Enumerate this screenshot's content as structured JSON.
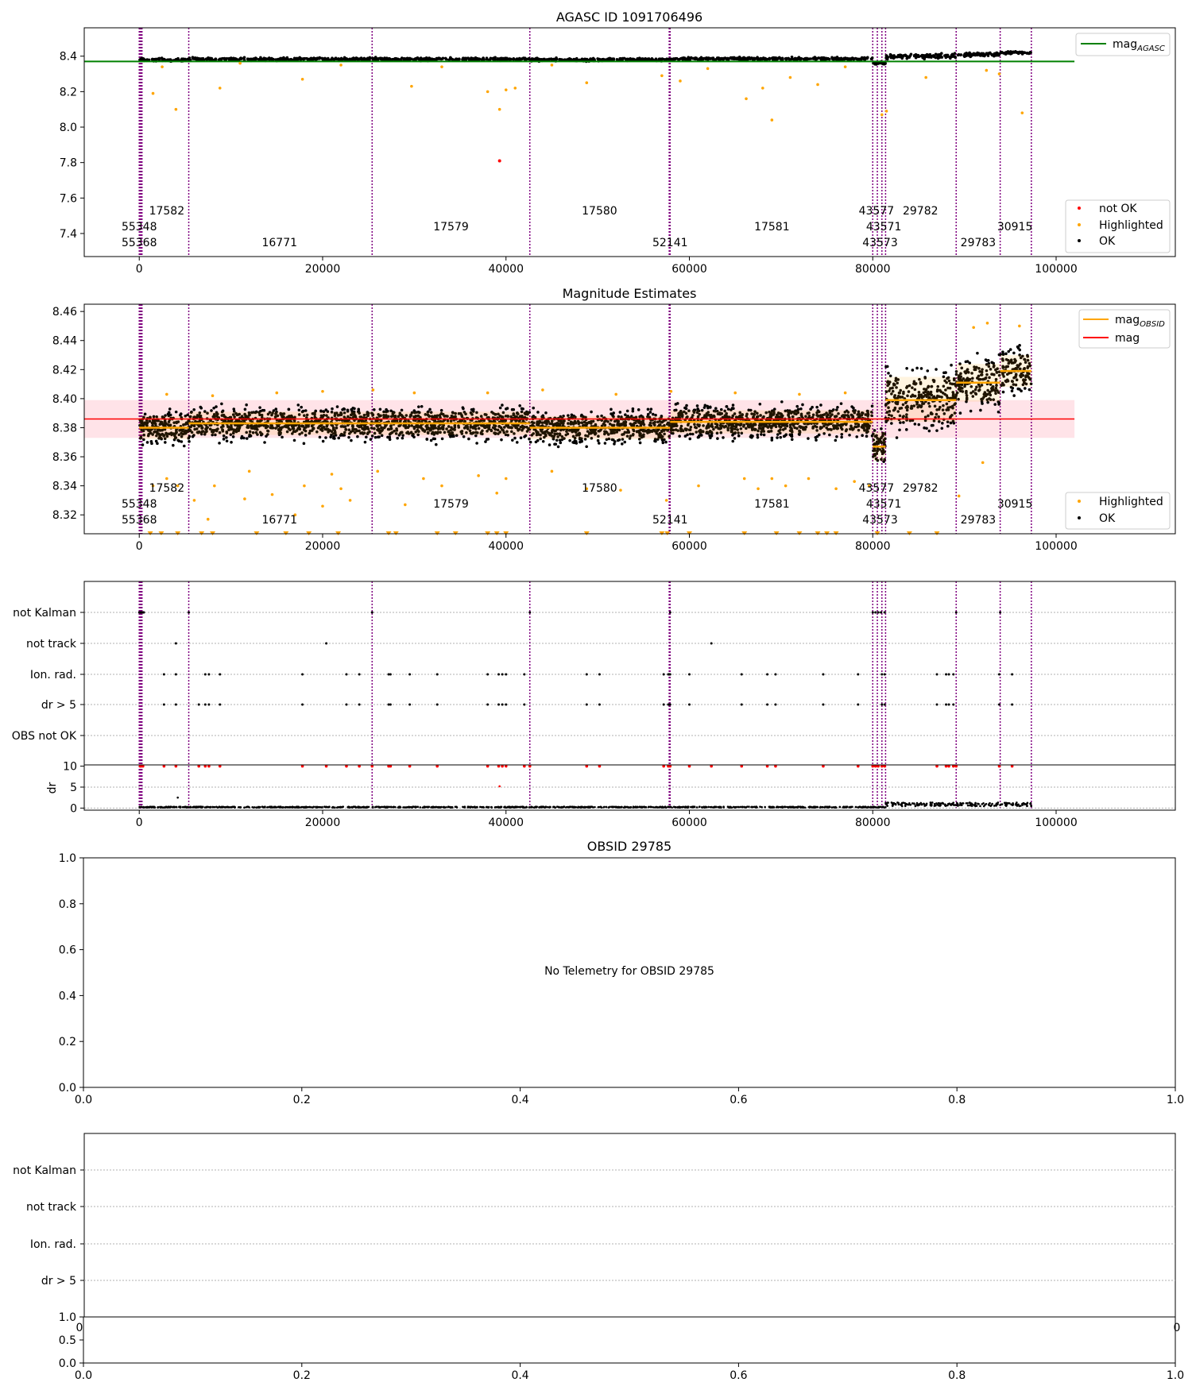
{
  "figure": {
    "title_1": "AGASC ID 1091706496",
    "title_2": "Magnitude Estimates",
    "title_4": "OBSID 29785",
    "no_telemetry_text": "No Telemetry for OBSID 29785"
  },
  "colors": {
    "ok": "#000000",
    "highlighted": "#ffa500",
    "not_ok": "#ff0000",
    "agasc_line": "#008000",
    "mag_line": "#ff0000",
    "mag_band": "#ffc0cb",
    "obsid_line": "#ffa500",
    "boundary": "#800080",
    "grid": "#b0b0b0"
  },
  "chart_data": [
    {
      "type": "scatter",
      "title": "AGASC ID 1091706496",
      "xlim": [
        -6000,
        113000
      ],
      "ylim": [
        7.27,
        8.56
      ],
      "xticks": [
        0,
        20000,
        40000,
        60000,
        80000,
        100000
      ],
      "yticks": [
        7.4,
        7.6,
        7.8,
        8.0,
        8.2,
        8.4
      ],
      "ytick_labels": [
        "7.4",
        "7.6",
        "7.8",
        "8.0",
        "8.2",
        "8.4"
      ],
      "legend_upper": {
        "position": "top-right",
        "entries": [
          {
            "label": "mag",
            "sub": "AGASC",
            "color": "#008000"
          }
        ]
      },
      "legend_lower": {
        "position": "bottom-right",
        "entries": [
          {
            "label": "not OK",
            "color": "#ff0000"
          },
          {
            "label": "Highlighted",
            "color": "#ffa500"
          },
          {
            "label": "OK",
            "color": "#000000"
          }
        ]
      },
      "agasc_mag": 8.37,
      "ok_segments": [
        {
          "x0": 0,
          "x1": 5400,
          "y": 8.38,
          "spread": 0.012
        },
        {
          "x0": 5400,
          "x1": 25400,
          "y": 8.383,
          "spread": 0.012
        },
        {
          "x0": 25400,
          "x1": 42600,
          "y": 8.383,
          "spread": 0.012
        },
        {
          "x0": 42600,
          "x1": 57900,
          "y": 8.38,
          "spread": 0.012
        },
        {
          "x0": 57900,
          "x1": 80000,
          "y": 8.385,
          "spread": 0.012
        },
        {
          "x0": 80000,
          "x1": 81400,
          "y": 8.36,
          "spread": 0.01
        },
        {
          "x0": 81400,
          "x1": 89100,
          "y": 8.4,
          "spread": 0.02
        },
        {
          "x0": 89100,
          "x1": 93900,
          "y": 8.41,
          "spread": 0.015
        },
        {
          "x0": 93900,
          "x1": 97300,
          "y": 8.42,
          "spread": 0.012
        }
      ],
      "highlighted_points": [
        [
          1500,
          8.19
        ],
        [
          4000,
          8.1
        ],
        [
          8800,
          8.22
        ],
        [
          17800,
          8.27
        ],
        [
          29700,
          8.23
        ],
        [
          38000,
          8.2
        ],
        [
          39300,
          8.1
        ],
        [
          40000,
          8.21
        ],
        [
          41000,
          8.22
        ],
        [
          48800,
          8.25
        ],
        [
          57000,
          8.29
        ],
        [
          59000,
          8.26
        ],
        [
          66200,
          8.16
        ],
        [
          68000,
          8.22
        ],
        [
          69000,
          8.04
        ],
        [
          71000,
          8.28
        ],
        [
          74000,
          8.24
        ],
        [
          81000,
          8.07
        ],
        [
          81500,
          8.09
        ],
        [
          85800,
          8.28
        ],
        [
          92400,
          8.32
        ],
        [
          93800,
          8.3
        ],
        [
          96300,
          8.08
        ],
        [
          2500,
          8.34
        ],
        [
          11000,
          8.36
        ],
        [
          22000,
          8.35
        ],
        [
          33000,
          8.34
        ],
        [
          45000,
          8.35
        ],
        [
          62000,
          8.33
        ],
        [
          77000,
          8.34
        ]
      ],
      "not_ok_points": [
        [
          39300,
          7.81
        ]
      ]
    },
    {
      "type": "scatter",
      "title": "Magnitude Estimates",
      "xlim": [
        -6000,
        113000
      ],
      "ylim": [
        8.307,
        8.465
      ],
      "xticks": [
        0,
        20000,
        40000,
        60000,
        80000,
        100000
      ],
      "yticks": [
        8.32,
        8.34,
        8.36,
        8.38,
        8.4,
        8.42,
        8.44,
        8.46
      ],
      "ytick_labels": [
        "8.32",
        "8.34",
        "8.36",
        "8.38",
        "8.40",
        "8.42",
        "8.44",
        "8.46"
      ],
      "legend_upper": {
        "position": "top-right",
        "entries": [
          {
            "label": "mag",
            "sub": "OBSID",
            "color": "#ffa500"
          },
          {
            "label": "mag",
            "sub": "",
            "color": "#ff0000"
          }
        ]
      },
      "legend_lower": {
        "position": "bottom-right",
        "entries": [
          {
            "label": "Highlighted",
            "color": "#ffa500"
          },
          {
            "label": "OK",
            "color": "#000000"
          }
        ]
      },
      "mag": 8.386,
      "mag_band": [
        8.373,
        8.399
      ],
      "obsid_mags": [
        {
          "x0": 0,
          "x1": 5400,
          "mag": 8.38,
          "lo": 8.372,
          "hi": 8.388,
          "spread": 0.007
        },
        {
          "x0": 5400,
          "x1": 25400,
          "mag": 8.383,
          "lo": 8.375,
          "hi": 8.391,
          "spread": 0.007
        },
        {
          "x0": 25400,
          "x1": 42600,
          "mag": 8.383,
          "lo": 8.375,
          "hi": 8.391,
          "spread": 0.007
        },
        {
          "x0": 42600,
          "x1": 57900,
          "mag": 8.38,
          "lo": 8.372,
          "hi": 8.388,
          "spread": 0.007
        },
        {
          "x0": 57900,
          "x1": 80000,
          "mag": 8.384,
          "lo": 8.376,
          "hi": 8.392,
          "spread": 0.007
        },
        {
          "x0": 80000,
          "x1": 81400,
          "mag": 8.367,
          "lo": 8.357,
          "hi": 8.377,
          "spread": 0.008
        },
        {
          "x0": 81400,
          "x1": 89100,
          "mag": 8.399,
          "lo": 8.384,
          "hi": 8.415,
          "spread": 0.014
        },
        {
          "x0": 89100,
          "x1": 93900,
          "mag": 8.411,
          "lo": 8.398,
          "hi": 8.424,
          "spread": 0.011
        },
        {
          "x0": 93900,
          "x1": 97300,
          "mag": 8.419,
          "lo": 8.408,
          "hi": 8.43,
          "spread": 0.01
        }
      ],
      "highlighted_points": [
        [
          1500,
          8.34
        ],
        [
          3000,
          8.345
        ],
        [
          4200,
          8.34
        ],
        [
          6000,
          8.33
        ],
        [
          7500,
          8.317
        ],
        [
          8200,
          8.34
        ],
        [
          11500,
          8.331
        ],
        [
          12000,
          8.35
        ],
        [
          14500,
          8.334
        ],
        [
          17000,
          8.32
        ],
        [
          18000,
          8.34
        ],
        [
          20000,
          8.326
        ],
        [
          21000,
          8.348
        ],
        [
          22000,
          8.338
        ],
        [
          23000,
          8.33
        ],
        [
          26000,
          8.35
        ],
        [
          29000,
          8.327
        ],
        [
          31000,
          8.345
        ],
        [
          33000,
          8.34
        ],
        [
          37000,
          8.347
        ],
        [
          39000,
          8.335
        ],
        [
          40000,
          8.345
        ],
        [
          45000,
          8.35
        ],
        [
          48800,
          8.338
        ],
        [
          52500,
          8.337
        ],
        [
          57500,
          8.33
        ],
        [
          61000,
          8.34
        ],
        [
          66000,
          8.345
        ],
        [
          67500,
          8.338
        ],
        [
          69000,
          8.345
        ],
        [
          70500,
          8.34
        ],
        [
          73000,
          8.345
        ],
        [
          76000,
          8.338
        ],
        [
          78000,
          8.343
        ],
        [
          79600,
          8.34
        ],
        [
          89400,
          8.333
        ],
        [
          92000,
          8.356
        ],
        [
          3000,
          8.403
        ],
        [
          8000,
          8.402
        ],
        [
          15000,
          8.404
        ],
        [
          20000,
          8.405
        ],
        [
          25500,
          8.406
        ],
        [
          30000,
          8.404
        ],
        [
          38000,
          8.404
        ],
        [
          44000,
          8.406
        ],
        [
          52000,
          8.403
        ],
        [
          58000,
          8.405
        ],
        [
          65000,
          8.404
        ],
        [
          72000,
          8.403
        ],
        [
          77000,
          8.404
        ],
        [
          91000,
          8.449
        ],
        [
          92500,
          8.452
        ],
        [
          96000,
          8.45
        ]
      ],
      "bottom_marker_x": [
        1200,
        2400,
        4200,
        6800,
        8000,
        12800,
        16000,
        18500,
        21700,
        27200,
        28000,
        32500,
        34500,
        38000,
        39000,
        40000,
        48800,
        57000,
        57600,
        60000,
        66000,
        69500,
        72000,
        74000,
        75000,
        76000,
        80500,
        84000,
        87000
      ]
    },
    {
      "type": "scatter",
      "title": "",
      "xlim": [
        -6000,
        113000
      ],
      "flag_labels": [
        "not Kalman",
        "not track",
        "Ion. rad.",
        "dr > 5",
        "OBS not OK"
      ],
      "flag_points": {
        "not_kalman": [
          0,
          100,
          200,
          300,
          400,
          500,
          5400,
          25400,
          42600,
          57900,
          80000,
          80300,
          80600,
          80900,
          81300,
          89100,
          93900
        ],
        "not_track": [
          4000,
          20400,
          62400
        ],
        "ion_rad": [
          2700,
          4000,
          7200,
          7600,
          8800,
          17800,
          22600,
          24000,
          27200,
          27400,
          29500,
          32500,
          38000,
          39200,
          39600,
          40000,
          42000,
          48800,
          50200,
          57200,
          57700,
          57800,
          57900,
          60000,
          65700,
          68500,
          69400,
          74600,
          78400,
          81000,
          81300,
          87000,
          88000,
          88300,
          88800,
          93800,
          95200
        ],
        "dr5": [
          2700,
          4000,
          6500,
          7200,
          7600,
          8800,
          17800,
          22600,
          24000,
          27200,
          27400,
          29500,
          32500,
          38000,
          39200,
          39600,
          40000,
          42000,
          48800,
          50200,
          57200,
          57700,
          57800,
          57900,
          60000,
          65700,
          68500,
          69400,
          74600,
          78400,
          81000,
          81300,
          87000,
          88000,
          88300,
          88800,
          93800,
          95200
        ]
      },
      "dr": {
        "ylabel": "dr",
        "ylim": [
          -0.5,
          10.3
        ],
        "yticks": [
          0,
          5,
          10
        ],
        "ytick_labels": [
          "0",
          "5",
          "10"
        ],
        "base_segments": [
          {
            "x0": 0,
            "x1": 81400,
            "y": 0.2
          },
          {
            "x0": 81400,
            "x1": 97300,
            "y": 0.8
          }
        ],
        "red_points_x": [
          100,
          200,
          400,
          2700,
          4000,
          6500,
          7200,
          7600,
          8800,
          17800,
          20400,
          22600,
          24000,
          25400,
          27200,
          27400,
          29500,
          32500,
          38000,
          39200,
          39600,
          40000,
          42000,
          42600,
          48800,
          50200,
          57200,
          57700,
          57900,
          60000,
          62400,
          65700,
          68500,
          69400,
          74600,
          78400,
          80000,
          80300,
          80600,
          81000,
          81300,
          87000,
          88000,
          88300,
          88800,
          89100,
          93800,
          95200
        ],
        "mid_points": [
          [
            39300,
            5.2
          ],
          [
            4200,
            2.5
          ]
        ]
      }
    },
    {
      "type": "line",
      "title": "OBSID 29785",
      "xlim": [
        0,
        1
      ],
      "ylim": [
        0,
        1
      ],
      "xticks": [
        0,
        0.2,
        0.4,
        0.6,
        0.8,
        1.0
      ],
      "xtick_labels": [
        "0.0",
        "0.2",
        "0.4",
        "0.6",
        "0.8",
        "1.0"
      ],
      "yticks": [
        0,
        0.2,
        0.4,
        0.6,
        0.8,
        1.0
      ],
      "ytick_labels": [
        "0.0",
        "0.2",
        "0.4",
        "0.6",
        "0.8",
        "1.0"
      ],
      "annotation": "No Telemetry for OBSID 29785"
    },
    {
      "type": "scatter",
      "title": "",
      "flag_labels": [
        "not Kalman",
        "not track",
        "Ion. rad.",
        "dr > 5"
      ],
      "lower": {
        "xlim": [
          0,
          1
        ],
        "ylim": [
          0,
          1
        ],
        "xticks": [
          0,
          0.2,
          0.4,
          0.6,
          0.8,
          1.0
        ],
        "xtick_labels": [
          "0.0",
          "0.2",
          "0.4",
          "0.6",
          "0.8",
          "1.0"
        ],
        "yticks": [
          0,
          0.5,
          1.0
        ],
        "ytick_labels": [
          "0.0",
          "0.5",
          "1.0"
        ],
        "hidden_tick_labels": [
          "0",
          "0"
        ]
      }
    }
  ],
  "shared": {
    "xtick_labels": [
      "0",
      "20000",
      "40000",
      "60000",
      "80000",
      "100000"
    ],
    "obsid_boundaries": [
      0,
      100,
      200,
      300,
      5400,
      25400,
      42600,
      57800,
      57900,
      80000,
      80500,
      81000,
      81400,
      89100,
      93900,
      97300
    ],
    "obsid_labels": [
      {
        "text": "17582",
        "x": 3000,
        "row": 0
      },
      {
        "text": "55348",
        "x": 0,
        "row": 1
      },
      {
        "text": "55368",
        "x": 0,
        "row": 2
      },
      {
        "text": "16771",
        "x": 15300,
        "row": 2
      },
      {
        "text": "17579",
        "x": 34000,
        "row": 1
      },
      {
        "text": "17580",
        "x": 50200,
        "row": 0
      },
      {
        "text": "52141",
        "x": 57900,
        "row": 2
      },
      {
        "text": "17581",
        "x": 69000,
        "row": 1
      },
      {
        "text": "43577",
        "x": 80400,
        "row": 0
      },
      {
        "text": "43571",
        "x": 81200,
        "row": 1
      },
      {
        "text": "43573",
        "x": 80800,
        "row": 2
      },
      {
        "text": "29782",
        "x": 85200,
        "row": 0
      },
      {
        "text": "29783",
        "x": 91500,
        "row": 2
      },
      {
        "text": "30915",
        "x": 95500,
        "row": 1
      }
    ]
  }
}
